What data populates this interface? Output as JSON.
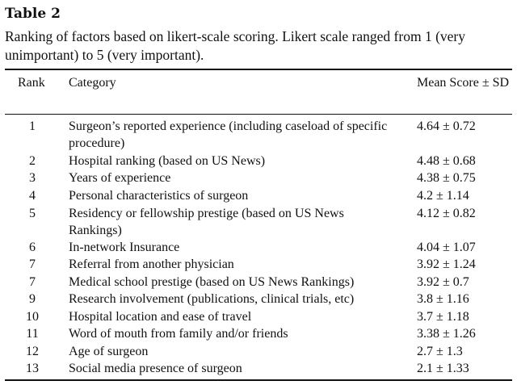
{
  "table_title": "Table 2",
  "caption": "Ranking of factors based on likert-scale scoring. Likert scale ranged from 1 (very unimportant) to 5 (very important).",
  "headers": {
    "rank": "Rank",
    "category": "Category",
    "mean_score": "Mean Score ± SD"
  },
  "rows": [
    {
      "rank": "1",
      "category": "Surgeon’s reported experience (including caseload of specific procedure)",
      "score": "4.64 ± 0.72"
    },
    {
      "rank": "2",
      "category": "Hospital ranking (based on US News)",
      "score": "4.48 ± 0.68"
    },
    {
      "rank": "3",
      "category": "Years of experience",
      "score": "4.38 ± 0.75"
    },
    {
      "rank": "4",
      "category": "Personal characteristics of surgeon",
      "score": "4.2 ± 1.14"
    },
    {
      "rank": "5",
      "category": "Residency or fellowship prestige (based on US News Rankings)",
      "score": "4.12 ± 0.82"
    },
    {
      "rank": "6",
      "category": "In-network Insurance",
      "score": "4.04 ± 1.07"
    },
    {
      "rank": "7",
      "category": "Referral from another physician",
      "score": "3.92 ± 1.24"
    },
    {
      "rank": "7",
      "category": "Medical school prestige (based on US News Rankings)",
      "score": "3.92 ± 0.7"
    },
    {
      "rank": "9",
      "category": "Research involvement (publications, clinical trials, etc)",
      "score": "3.8 ± 1.16"
    },
    {
      "rank": "10",
      "category": "Hospital location and ease of travel",
      "score": "3.7 ± 1.18"
    },
    {
      "rank": "11",
      "category": "Word of mouth from family and/or friends",
      "score": "3.38 ± 1.26"
    },
    {
      "rank": "12",
      "category": "Age of surgeon",
      "score": "2.7 ± 1.3"
    },
    {
      "rank": "13",
      "category": "Social media presence of surgeon",
      "score": "2.1 ± 1.33"
    }
  ]
}
